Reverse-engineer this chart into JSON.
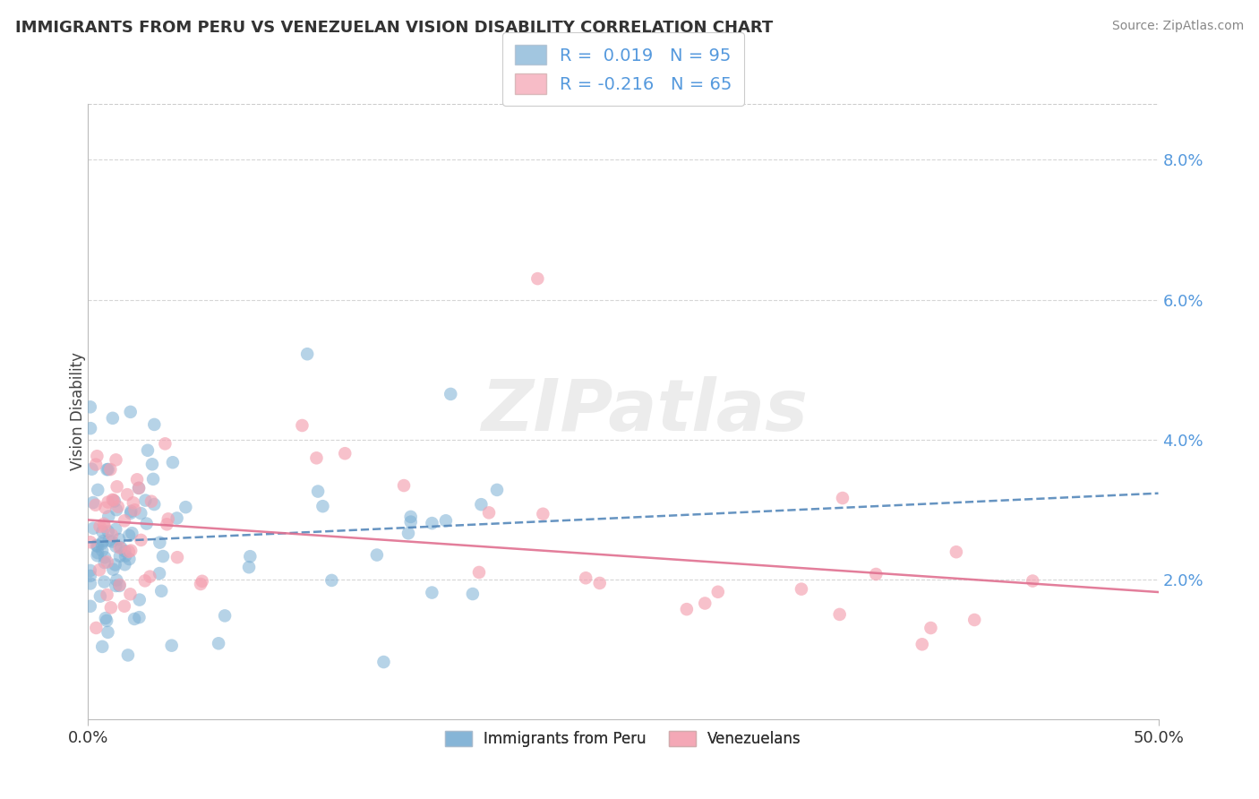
{
  "title": "IMMIGRANTS FROM PERU VS VENEZUELAN VISION DISABILITY CORRELATION CHART",
  "source": "Source: ZipAtlas.com",
  "ylabel": "Vision Disability",
  "y_ticks": [
    "2.0%",
    "4.0%",
    "6.0%",
    "8.0%"
  ],
  "y_tick_vals": [
    0.02,
    0.04,
    0.06,
    0.08
  ],
  "xlim": [
    0.0,
    0.5
  ],
  "ylim": [
    0.0,
    0.088
  ],
  "ytick_color": "#5599DD",
  "xtick_color": "#333333",
  "blue_color": "#7BAFD4",
  "pink_color": "#F4A0B0",
  "blue_trend_color": "#5588BB",
  "pink_trend_color": "#E07090",
  "watermark": "ZIPatlas",
  "legend_label1": "R =  0.019   N = 95",
  "legend_label2": "R = -0.216   N = 65",
  "bottom_legend1": "Immigrants from Peru",
  "bottom_legend2": "Venezuelans"
}
